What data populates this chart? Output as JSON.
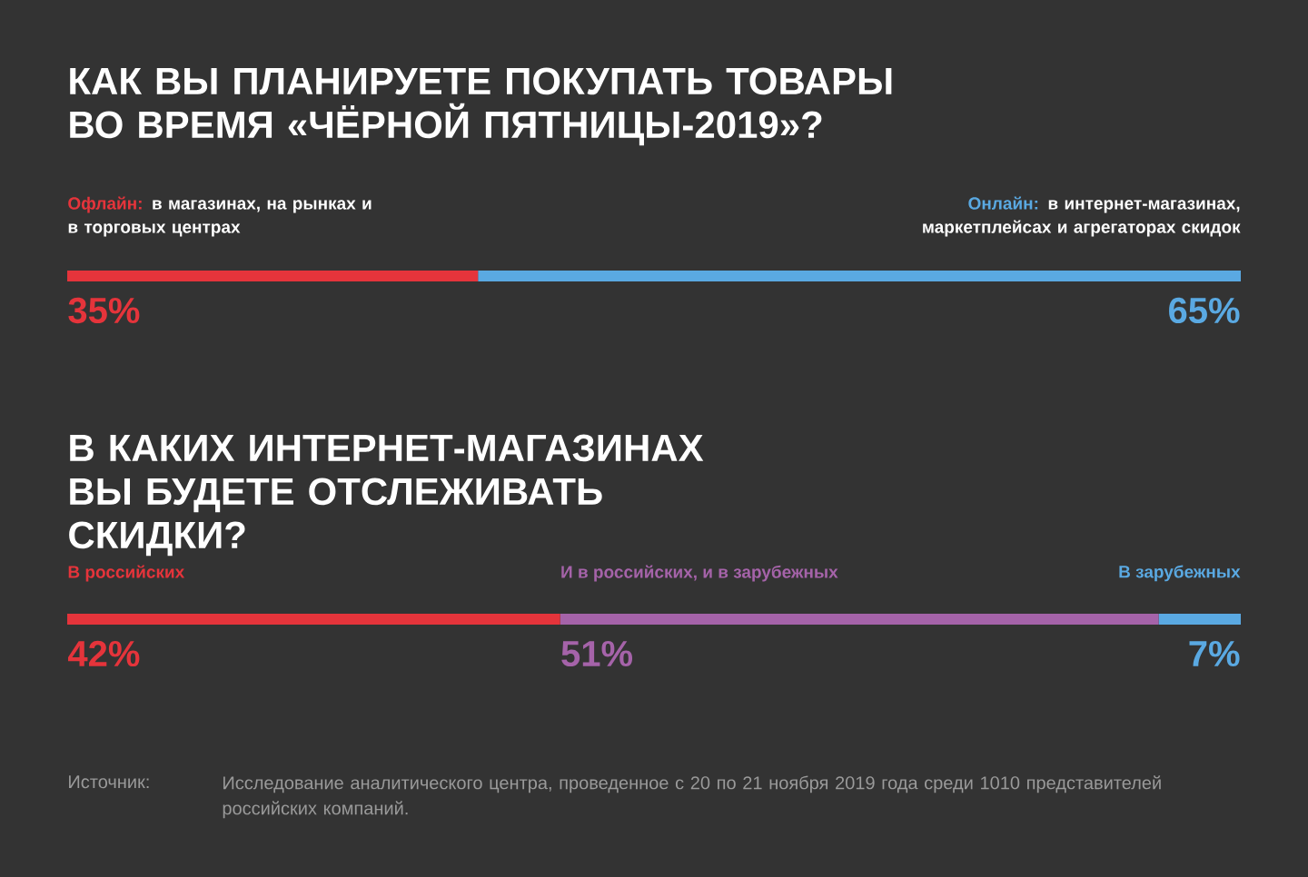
{
  "chart_data": [
    {
      "type": "bar",
      "orientation": "horizontal",
      "stacked": true,
      "title": "КАК ВЫ ПЛАНИРУЕТЕ ПОКУПАТЬ ТОВАРЫ ВО ВРЕМЯ «ЧЁРНОЙ ПЯТНИЦЫ-2019»?",
      "categories": [
        null
      ],
      "series": [
        {
          "name": "Офлайн:",
          "color": "#e5343b",
          "values": [
            35
          ],
          "value_labels": [
            "35%"
          ]
        },
        {
          "name": "Онлайн:",
          "color": "#5aa9e2",
          "values": [
            65
          ],
          "value_labels": [
            "65%"
          ]
        }
      ],
      "annotations": [
        "в магазинах, на рынках и в торговых центрах",
        "в интернет-магазинах, маркетплейсах и агрегаторах скидок"
      ]
    },
    {
      "type": "bar",
      "orientation": "horizontal",
      "stacked": true,
      "title": "В КАКИХ ИНТЕРНЕТ-МАГАЗИНАХ ВЫ БУДЕТЕ ОТСЛЕЖИВАТЬ СКИДКИ?",
      "categories": [
        null
      ],
      "series": [
        {
          "name": "В российских",
          "color": "#e5343b",
          "values": [
            42
          ],
          "value_labels": [
            "42%"
          ]
        },
        {
          "name": "И в российских, и в зарубежных",
          "color": "#a563a9",
          "values": [
            51
          ],
          "value_labels": [
            "51%"
          ]
        },
        {
          "name": "В зарубежных",
          "color": "#5aa9e2",
          "values": [
            7
          ],
          "value_labels": [
            "7%"
          ]
        }
      ],
      "annotations": [
        "Источник:",
        "Исследование аналитического центра, проведенное с 20 по 21 ноября 2019 года среди 1010 представителей российских компаний."
      ]
    }
  ]
}
